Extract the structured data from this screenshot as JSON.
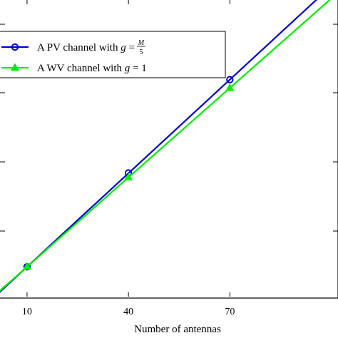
{
  "chart_data": {
    "type": "line",
    "xlabel": "Number of antennas",
    "x_ticks": [
      10,
      40,
      70
    ],
    "xlim": [
      2,
      102
    ],
    "ylim": [
      0,
      100
    ],
    "grid": false,
    "legend_position": "top-left",
    "series": [
      {
        "name": "A PV channel with g = M/5",
        "legend_prefix": "A PV channel with ",
        "legend_var": "g",
        "legend_eq": " = ",
        "legend_num": "M",
        "legend_den": "5",
        "color": "#0000cc",
        "marker": "circle",
        "x": [
          10,
          40,
          70
        ],
        "y": [
          10.0,
          41.5,
          72.8
        ]
      },
      {
        "name": "A WV channel with g = 1",
        "legend_prefix": "A WV channel with ",
        "legend_var": "g",
        "legend_eq": " = 1",
        "color": "#00ee00",
        "marker": "triangle",
        "x": [
          10,
          40,
          70
        ],
        "y": [
          10.0,
          40.0,
          70.0
        ]
      }
    ]
  }
}
